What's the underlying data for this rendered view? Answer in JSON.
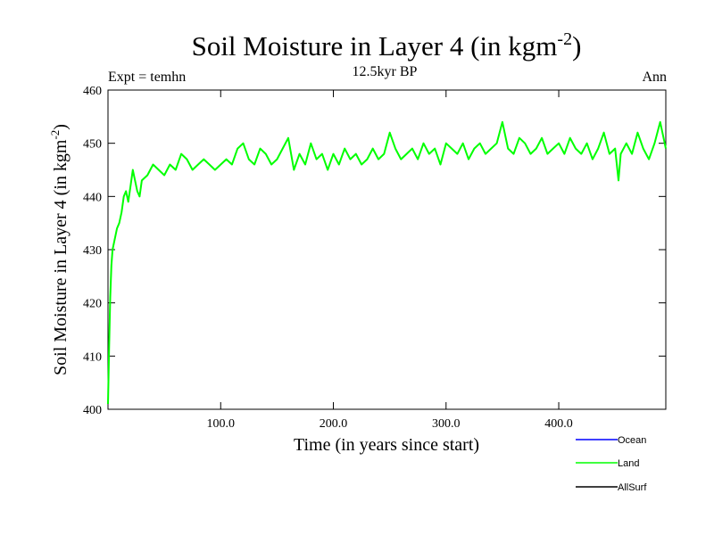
{
  "chart_data": {
    "type": "line",
    "title": "Soil Moisture in Layer 4 (in kgm",
    "title_superscript": "-2",
    "title_close": ")",
    "subtitle": "12.5kyr BP",
    "left_note": "Expt = temhn",
    "right_note": "Ann",
    "xlabel": "Time (in years since start)",
    "ylabel": "Soil Moisture in Layer 4 (in kgm",
    "ylabel_superscript": "-2",
    "ylabel_close": ")",
    "xlim": [
      0,
      495
    ],
    "ylim": [
      400,
      460
    ],
    "xticks": [
      100,
      200,
      300,
      400
    ],
    "xtick_labels": [
      "100.0",
      "200.0",
      "300.0",
      "400.0"
    ],
    "yticks": [
      400,
      410,
      420,
      430,
      440,
      450,
      460
    ],
    "ytick_labels": [
      "400",
      "410",
      "420",
      "430",
      "440",
      "450",
      "460"
    ],
    "legend": [
      {
        "name": "Ocean",
        "color": "#0000ff"
      },
      {
        "name": "Land",
        "color": "#00ff00"
      },
      {
        "name": "AllSurf",
        "color": "#000000"
      }
    ],
    "series": [
      {
        "name": "Land",
        "color": "#00ff00",
        "x": [
          0,
          1,
          2,
          3,
          4,
          6,
          8,
          10,
          12,
          14,
          16,
          18,
          20,
          22,
          24,
          26,
          28,
          30,
          35,
          40,
          45,
          50,
          55,
          60,
          65,
          70,
          75,
          80,
          85,
          90,
          95,
          100,
          105,
          110,
          115,
          120,
          125,
          130,
          135,
          140,
          145,
          150,
          155,
          160,
          165,
          170,
          175,
          180,
          185,
          190,
          195,
          200,
          205,
          210,
          215,
          220,
          225,
          230,
          235,
          240,
          245,
          250,
          255,
          260,
          265,
          270,
          275,
          280,
          285,
          290,
          295,
          300,
          305,
          310,
          315,
          320,
          325,
          330,
          335,
          340,
          345,
          350,
          355,
          360,
          365,
          370,
          375,
          380,
          385,
          390,
          395,
          400,
          405,
          410,
          415,
          420,
          425,
          430,
          435,
          440,
          445,
          450,
          453,
          455,
          460,
          465,
          470,
          475,
          480,
          485,
          490,
          495
        ],
        "values": [
          401,
          412,
          421,
          427,
          430,
          432,
          434,
          435,
          437,
          440,
          441,
          439,
          442,
          445,
          443,
          441,
          440,
          443,
          444,
          446,
          445,
          444,
          446,
          445,
          448,
          447,
          445,
          446,
          447,
          446,
          445,
          446,
          447,
          446,
          449,
          450,
          447,
          446,
          449,
          448,
          446,
          447,
          449,
          451,
          445,
          448,
          446,
          450,
          447,
          448,
          445,
          448,
          446,
          449,
          447,
          448,
          446,
          447,
          449,
          447,
          448,
          452,
          449,
          447,
          448,
          449,
          447,
          450,
          448,
          449,
          446,
          450,
          449,
          448,
          450,
          447,
          449,
          450,
          448,
          449,
          450,
          454,
          449,
          448,
          451,
          450,
          448,
          449,
          451,
          448,
          449,
          450,
          448,
          451,
          449,
          448,
          450,
          447,
          449,
          452,
          448,
          449,
          443,
          448,
          450,
          448,
          452,
          449,
          447,
          450,
          454,
          449
        ]
      }
    ]
  }
}
